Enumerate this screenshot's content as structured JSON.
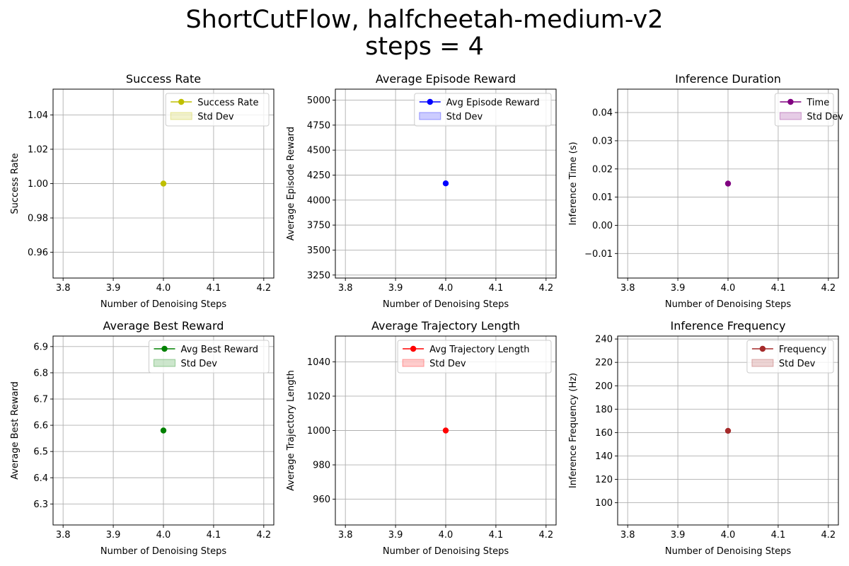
{
  "figure": {
    "title_line1": "ShortCutFlow, halfcheetah-medium-v2",
    "title_line2": "steps = 4"
  },
  "chart_data": [
    {
      "type": "line",
      "title": "Success Rate",
      "xlabel": "Number of Denoising Steps",
      "ylabel": "Success Rate",
      "x": [
        4
      ],
      "series": [
        {
          "name": "Success Rate",
          "values": [
            1.0
          ],
          "color": "#bfbf00"
        }
      ],
      "std_label": "Std Dev",
      "xlim": [
        3.78,
        4.22
      ],
      "ylim": [
        0.945,
        1.055
      ],
      "xticks": [
        3.8,
        3.9,
        4.0,
        4.1,
        4.2
      ],
      "xtick_labels": [
        "3.8",
        "3.9",
        "4.0",
        "4.1",
        "4.2"
      ],
      "yticks": [
        0.96,
        0.98,
        1.0,
        1.02,
        1.04
      ],
      "ytick_labels": [
        "0.96",
        "0.98",
        "1.00",
        "1.02",
        "1.04"
      ],
      "grid": true,
      "legend": "upper right"
    },
    {
      "type": "line",
      "title": "Average Episode Reward",
      "xlabel": "Number of Denoising Steps",
      "ylabel": "Average Episode Reward",
      "x": [
        4
      ],
      "series": [
        {
          "name": "Avg Episode Reward",
          "values": [
            4167
          ],
          "color": "#0000ff"
        }
      ],
      "std_label": "Std Dev",
      "xlim": [
        3.78,
        4.22
      ],
      "ylim": [
        3220,
        5110
      ],
      "xticks": [
        3.8,
        3.9,
        4.0,
        4.1,
        4.2
      ],
      "xtick_labels": [
        "3.8",
        "3.9",
        "4.0",
        "4.1",
        "4.2"
      ],
      "yticks": [
        3250,
        3500,
        3750,
        4000,
        4250,
        4500,
        4750,
        5000
      ],
      "ytick_labels": [
        "3250",
        "3500",
        "3750",
        "4000",
        "4250",
        "4500",
        "4750",
        "5000"
      ],
      "grid": true,
      "legend": "upper right"
    },
    {
      "type": "line",
      "title": "Inference Duration",
      "xlabel": "Number of Denoising Steps",
      "ylabel": "Inference Time (s)",
      "x": [
        4
      ],
      "series": [
        {
          "name": "Time",
          "values": [
            0.0148
          ],
          "color": "#800080"
        }
      ],
      "std_label": "Std Dev",
      "xlim": [
        3.78,
        4.22
      ],
      "ylim": [
        -0.0187,
        0.0483
      ],
      "xticks": [
        3.8,
        3.9,
        4.0,
        4.1,
        4.2
      ],
      "xtick_labels": [
        "3.8",
        "3.9",
        "4.0",
        "4.1",
        "4.2"
      ],
      "yticks": [
        -0.01,
        0.0,
        0.01,
        0.02,
        0.03,
        0.04
      ],
      "ytick_labels": [
        "−0.01",
        "0.00",
        "0.01",
        "0.02",
        "0.03",
        "0.04"
      ],
      "grid": true,
      "legend": "upper right"
    },
    {
      "type": "line",
      "title": "Average Best Reward",
      "xlabel": "Number of Denoising Steps",
      "ylabel": "Average Best Reward",
      "x": [
        4
      ],
      "series": [
        {
          "name": "Avg Best Reward",
          "values": [
            6.58
          ],
          "color": "#008000"
        }
      ],
      "std_label": "Std Dev",
      "xlim": [
        3.78,
        4.22
      ],
      "ylim": [
        6.22,
        6.94
      ],
      "xticks": [
        3.8,
        3.9,
        4.0,
        4.1,
        4.2
      ],
      "xtick_labels": [
        "3.8",
        "3.9",
        "4.0",
        "4.1",
        "4.2"
      ],
      "yticks": [
        6.3,
        6.4,
        6.5,
        6.6,
        6.7,
        6.8,
        6.9
      ],
      "ytick_labels": [
        "6.3",
        "6.4",
        "6.5",
        "6.6",
        "6.7",
        "6.8",
        "6.9"
      ],
      "grid": true,
      "legend": "upper right"
    },
    {
      "type": "line",
      "title": "Average Trajectory Length",
      "xlabel": "Number of Denoising Steps",
      "ylabel": "Average Trajectory Length",
      "x": [
        4
      ],
      "series": [
        {
          "name": "Avg Trajectory Length",
          "values": [
            1000
          ],
          "color": "#ff0000"
        }
      ],
      "std_label": "Std Dev",
      "xlim": [
        3.78,
        4.22
      ],
      "ylim": [
        945,
        1055
      ],
      "xticks": [
        3.8,
        3.9,
        4.0,
        4.1,
        4.2
      ],
      "xtick_labels": [
        "3.8",
        "3.9",
        "4.0",
        "4.1",
        "4.2"
      ],
      "yticks": [
        960,
        980,
        1000,
        1020,
        1040
      ],
      "ytick_labels": [
        "960",
        "980",
        "1000",
        "1020",
        "1040"
      ],
      "grid": true,
      "legend": "upper right"
    },
    {
      "type": "line",
      "title": "Inference Frequency",
      "xlabel": "Number of Denoising Steps",
      "ylabel": "Inference Frequency (Hz)",
      "x": [
        4
      ],
      "series": [
        {
          "name": "Frequency",
          "values": [
            161.5
          ],
          "color": "#a52a2a"
        }
      ],
      "std_label": "Std Dev",
      "xlim": [
        3.78,
        4.22
      ],
      "ylim": [
        81,
        242.5
      ],
      "xticks": [
        3.8,
        3.9,
        4.0,
        4.1,
        4.2
      ],
      "xtick_labels": [
        "3.8",
        "3.9",
        "4.0",
        "4.1",
        "4.2"
      ],
      "yticks": [
        100,
        120,
        140,
        160,
        180,
        200,
        220,
        240
      ],
      "ytick_labels": [
        "100",
        "120",
        "140",
        "160",
        "180",
        "200",
        "220",
        "240"
      ],
      "grid": true,
      "legend": "upper right"
    }
  ]
}
